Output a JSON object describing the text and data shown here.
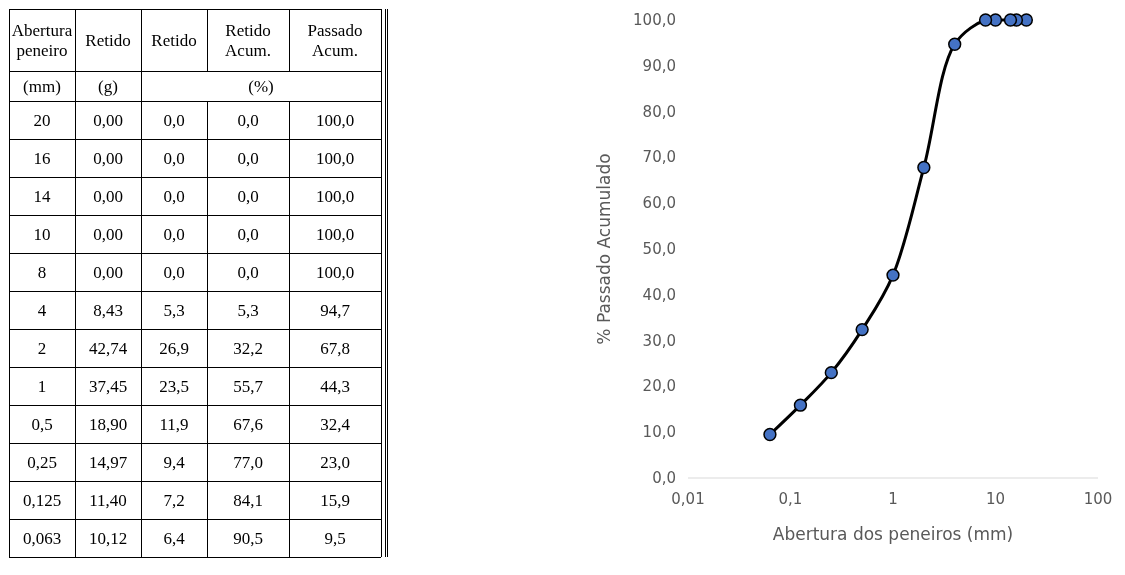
{
  "chart_data": [
    {
      "type": "other",
      "xlabel": "Abertura peneiro",
      "annotations": [
        "(mm)",
        "(g)",
        "(%)"
      ],
      "categories": [
        "20",
        "16",
        "14",
        "10",
        "8",
        "4",
        "2",
        "1",
        "0,5",
        "0,25",
        "0,125",
        "0,063"
      ],
      "series": [
        {
          "name": "Retido",
          "values": [
            0,
            0,
            0,
            0,
            0,
            8.43,
            42.74,
            37.45,
            18.9,
            14.97,
            11.4,
            10.12
          ],
          "value_labels": [
            "0,00",
            "0,00",
            "0,00",
            "0,00",
            "0,00",
            "8,43",
            "42,74",
            "37,45",
            "18,90",
            "14,97",
            "11,40",
            "10,12"
          ]
        },
        {
          "name": "Retido",
          "values": [
            0,
            0,
            0,
            0,
            0,
            5.3,
            26.9,
            23.5,
            11.9,
            9.4,
            7.2,
            6.4
          ],
          "value_labels": [
            "0,0",
            "0,0",
            "0,0",
            "0,0",
            "0,0",
            "5,3",
            "26,9",
            "23,5",
            "11,9",
            "9,4",
            "7,2",
            "6,4"
          ]
        },
        {
          "name": "Retido Acum.",
          "values": [
            0,
            0,
            0,
            0,
            0,
            5.3,
            32.2,
            55.7,
            67.6,
            77.0,
            84.1,
            90.5
          ],
          "value_labels": [
            "0,0",
            "0,0",
            "0,0",
            "0,0",
            "0,0",
            "5,3",
            "32,2",
            "55,7",
            "67,6",
            "77,0",
            "84,1",
            "90,5"
          ]
        },
        {
          "name": "Passado Acum.",
          "values": [
            100,
            100,
            100,
            100,
            100,
            94.7,
            67.8,
            44.3,
            32.4,
            23.0,
            15.9,
            9.5
          ],
          "value_labels": [
            "100,0",
            "100,0",
            "100,0",
            "100,0",
            "100,0",
            "94,7",
            "67,8",
            "44,3",
            "32,4",
            "23,0",
            "15,9",
            "9,5"
          ]
        }
      ]
    },
    {
      "type": "line",
      "xlabel": "Abertura dos peneiros (mm)",
      "ylabel": "% Passado Acumulado",
      "log": "x",
      "marker": "circle",
      "x": [
        20,
        16,
        14,
        10,
        8,
        4,
        2,
        1,
        0.5,
        0.25,
        0.125,
        0.063
      ],
      "series": [
        {
          "color": "#4472c4",
          "values": [
            100,
            100,
            100,
            100,
            100,
            94.7,
            67.8,
            44.3,
            32.4,
            23.0,
            15.9,
            9.5
          ]
        }
      ],
      "xlim": [
        0.01,
        100
      ],
      "xticks": [
        {
          "value": 0.01,
          "label": "0,01"
        },
        {
          "value": 0.1,
          "label": "0,1"
        },
        {
          "value": 1,
          "label": "1"
        },
        {
          "value": 10,
          "label": "10"
        },
        {
          "value": 100,
          "label": "100"
        }
      ],
      "ylim": [
        0,
        100
      ],
      "yticks": [
        {
          "value": 0,
          "label": "0,0"
        },
        {
          "value": 10,
          "label": "10,0"
        },
        {
          "value": 20,
          "label": "20,0"
        },
        {
          "value": 30,
          "label": "30,0"
        },
        {
          "value": 40,
          "label": "40,0"
        },
        {
          "value": 50,
          "label": "50,0"
        },
        {
          "value": 60,
          "label": "60,0"
        },
        {
          "value": 70,
          "label": "70,0"
        },
        {
          "value": 80,
          "label": "80,0"
        },
        {
          "value": 90,
          "label": "90,0"
        },
        {
          "value": 100,
          "label": "100,0"
        }
      ]
    }
  ]
}
